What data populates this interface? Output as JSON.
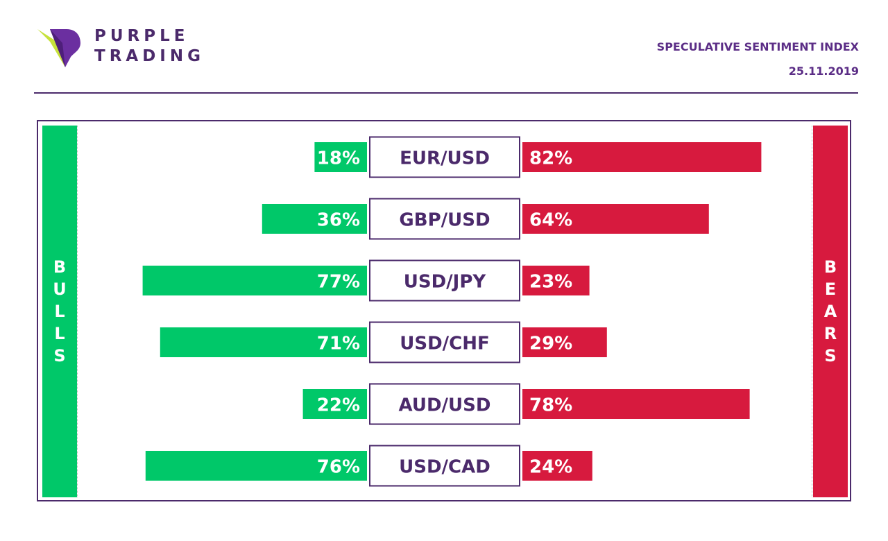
{
  "brand": {
    "line1": "PURPLE",
    "line2": "TRADING"
  },
  "header": {
    "title": "SPECULATIVE SENTIMENT INDEX",
    "date": "25.11.2019"
  },
  "colors": {
    "bull": "#00c869",
    "bear": "#d71a3e",
    "purple": "#4b2a6b",
    "logo_green": "#c6e13a"
  },
  "chart_data": {
    "type": "bar",
    "orientation": "horizontal-diverging",
    "categories": [
      "EUR/USD",
      "GBP/USD",
      "USD/JPY",
      "USD/CHF",
      "AUD/USD",
      "USD/CAD"
    ],
    "series": [
      {
        "name": "BULLS",
        "values": [
          18,
          36,
          77,
          71,
          22,
          76
        ],
        "labels": [
          "18%",
          "36%",
          "77%",
          "71%",
          "22%",
          "76%"
        ]
      },
      {
        "name": "BEARS",
        "values": [
          82,
          64,
          23,
          29,
          78,
          24
        ],
        "labels": [
          "82%",
          "64%",
          "23%",
          "29%",
          "78%",
          "24%"
        ]
      }
    ],
    "bull_side_letters": [
      "B",
      "U",
      "L",
      "L",
      "S"
    ],
    "bear_side_letters": [
      "B",
      "E",
      "A",
      "R",
      "S"
    ],
    "unit": "%",
    "xlim": [
      0,
      100
    ]
  }
}
